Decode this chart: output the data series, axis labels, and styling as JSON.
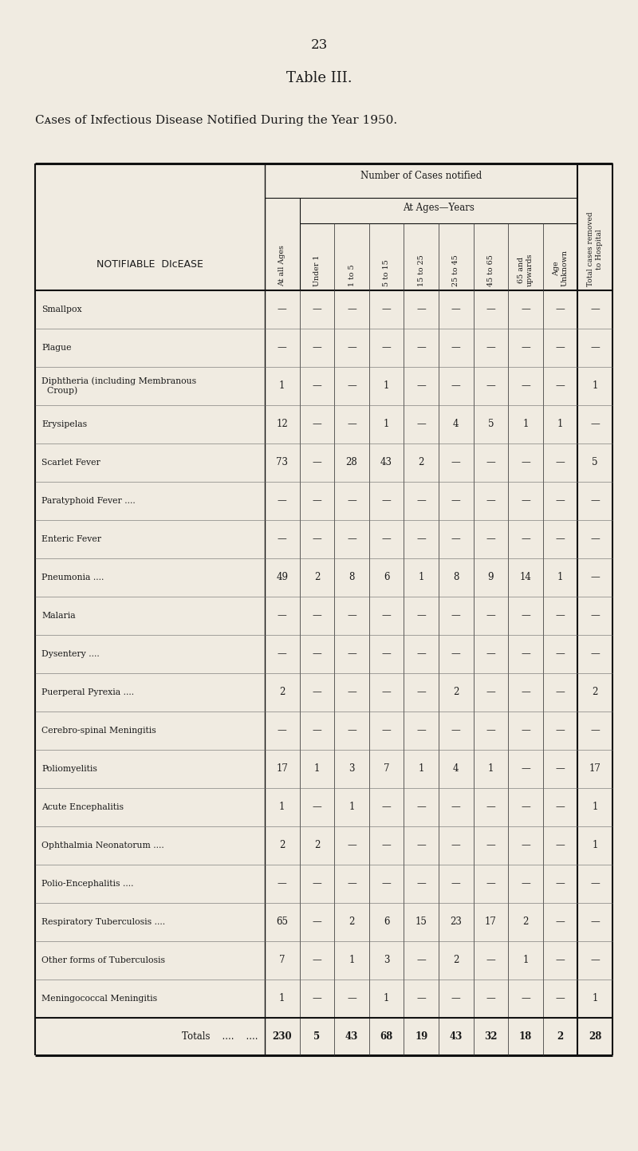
{
  "page_number": "23",
  "title": "Table III.",
  "subtitle": "Cases of Infectious Disease Notified During the Year 1950.",
  "bg_color": "#f0ebe1",
  "text_color": "#1a1a1a",
  "rows": [
    {
      "disease": "Smallpox",
      "dots": "....    ....    ....    ....",
      "vals": [
        "—",
        "—",
        "—",
        "—",
        "—",
        "—",
        "—",
        "—",
        "—",
        "—"
      ]
    },
    {
      "disease": "Plague",
      "dots": "....    ....    ....    ....",
      "vals": [
        "—",
        "—",
        "—",
        "—",
        "—",
        "—",
        "—",
        "—",
        "—",
        "—"
      ]
    },
    {
      "disease": "Diphtheria (including Membranous Croup)",
      "dots": "",
      "multiline": true,
      "line1": "Diphtheria (including Membranous",
      "line2": "  Croup)",
      "vals": [
        "1",
        "—",
        "—",
        "1",
        "—",
        "—",
        "—",
        "—",
        "—",
        "1"
      ]
    },
    {
      "disease": "Erysipelas",
      "dots": "....    ....    ....    ....",
      "vals": [
        "12",
        "—",
        "—",
        "1",
        "—",
        "4",
        "5",
        "1",
        "1",
        "—"
      ]
    },
    {
      "disease": "Scarlet Fever",
      "dots": "....    ....    ....",
      "vals": [
        "73",
        "—",
        "28",
        "43",
        "2",
        "—",
        "—",
        "—",
        "—",
        "5"
      ]
    },
    {
      "disease": "Paratyphoid Fever ....",
      "dots": "....    ....",
      "vals": [
        "—",
        "—",
        "—",
        "—",
        "—",
        "—",
        "—",
        "—",
        "—",
        "—"
      ]
    },
    {
      "disease": "Enteric Fever",
      "dots": "....    ....    ....",
      "vals": [
        "—",
        "—",
        "—",
        "—",
        "—",
        "—",
        "—",
        "—",
        "—",
        "—"
      ]
    },
    {
      "disease": "Pneumonia ....",
      "dots": "....    ....    ....",
      "vals": [
        "49",
        "2",
        "8",
        "6",
        "1",
        "8",
        "9",
        "14",
        "1",
        "—"
      ]
    },
    {
      "disease": "Malaria",
      "dots": "....    ....    ....    ....",
      "vals": [
        "—",
        "—",
        "—",
        "—",
        "—",
        "—",
        "—",
        "—",
        "—",
        "—"
      ]
    },
    {
      "disease": "Dysentery ....",
      "dots": "....    ....",
      "vals": [
        "—",
        "—",
        "—",
        "—",
        "—",
        "—",
        "—",
        "—",
        "—",
        "—"
      ]
    },
    {
      "disease": "Puerperal Pyrexia ....",
      "dots": "....    ....",
      "vals": [
        "2",
        "—",
        "—",
        "—",
        "—",
        "2",
        "—",
        "—",
        "—",
        "2"
      ]
    },
    {
      "disease": "Cerebro-spinal Meningitis",
      "dots": "....",
      "vals": [
        "—",
        "—",
        "—",
        "—",
        "—",
        "—",
        "—",
        "—",
        "—",
        "—"
      ]
    },
    {
      "disease": "Poliomyelitis",
      "dots": "....    ....    ....",
      "vals": [
        "17",
        "1",
        "3",
        "7",
        "1",
        "4",
        "1",
        "—",
        "—",
        "17"
      ]
    },
    {
      "disease": "Acute Encephalitis",
      "dots": "....    ....",
      "vals": [
        "1",
        "—",
        "1",
        "—",
        "—",
        "—",
        "—",
        "—",
        "—",
        "1"
      ]
    },
    {
      "disease": "Ophthalmia Neonatorum ....",
      "dots": "....",
      "vals": [
        "2",
        "2",
        "—",
        "—",
        "—",
        "—",
        "—",
        "—",
        "—",
        "1"
      ]
    },
    {
      "disease": "Polio-Encephalitis ....",
      "dots": "....    ....",
      "vals": [
        "—",
        "—",
        "—",
        "—",
        "—",
        "—",
        "—",
        "—",
        "—",
        "—"
      ]
    },
    {
      "disease": "Respiratory Tuberculosis ....",
      "dots": "....",
      "vals": [
        "65",
        "—",
        "2",
        "6",
        "15",
        "23",
        "17",
        "2",
        "—",
        "—"
      ]
    },
    {
      "disease": "Other forms of Tuberculosis",
      "dots": "....",
      "vals": [
        "7",
        "—",
        "1",
        "3",
        "—",
        "2",
        "—",
        "1",
        "—",
        "—"
      ]
    },
    {
      "disease": "Meningococcal Meningitis",
      "dots": "....",
      "vals": [
        "1",
        "—",
        "—",
        "1",
        "—",
        "—",
        "—",
        "—",
        "—",
        "1"
      ]
    }
  ],
  "totals_vals": [
    "230",
    "5",
    "43",
    "68",
    "19",
    "43",
    "32",
    "18",
    "2",
    "28"
  ]
}
